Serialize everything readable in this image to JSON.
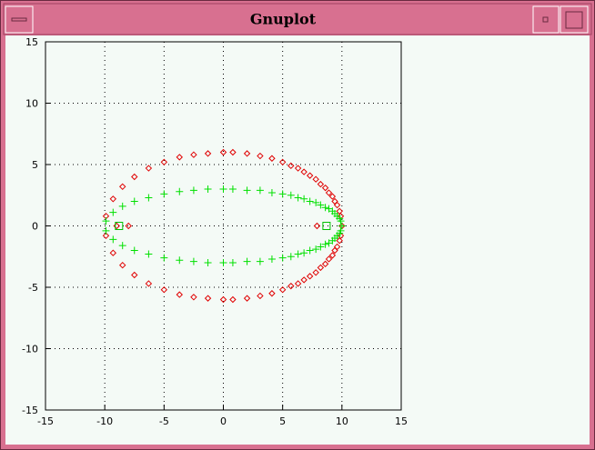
{
  "window": {
    "title": "Gnuplot"
  },
  "chart_data": {
    "type": "scatter",
    "xlim": [
      -15,
      15
    ],
    "ylim": [
      -15,
      15
    ],
    "xticks": [
      -15,
      -10,
      -5,
      0,
      5,
      10,
      15
    ],
    "yticks": [
      -15,
      -10,
      -5,
      0,
      5,
      10,
      15
    ],
    "grid": true,
    "series": [
      {
        "color": "#e00000",
        "marker": "diamond",
        "x": [
          -9.9,
          -9.3,
          -8.5,
          -7.5,
          -6.3,
          -5.0,
          -3.7,
          -2.5,
          -1.3,
          0,
          0.8,
          2.0,
          3.1,
          4.1,
          5.0,
          5.7,
          6.3,
          6.8,
          7.3,
          7.8,
          8.2,
          8.6,
          8.9,
          9.2,
          9.4,
          9.6,
          9.8,
          9.9,
          10.0,
          -9.9,
          -9.3,
          -8.5,
          -7.5,
          -6.3,
          -5.0,
          -3.7,
          -2.5,
          -1.3,
          0,
          0.8,
          2.0,
          3.1,
          4.1,
          5.0,
          5.7,
          6.3,
          6.8,
          7.3,
          7.8,
          8.2,
          8.6,
          8.9,
          9.2,
          9.4,
          9.6,
          9.8,
          9.9,
          -9,
          -8,
          7.9
        ],
        "y": [
          0.8,
          2.2,
          3.2,
          4.0,
          4.7,
          5.2,
          5.6,
          5.8,
          5.9,
          6.0,
          6.0,
          5.9,
          5.7,
          5.5,
          5.2,
          4.9,
          4.7,
          4.4,
          4.1,
          3.8,
          3.4,
          3.1,
          2.7,
          2.4,
          2.0,
          1.7,
          1.2,
          0.8,
          0,
          -0.8,
          -2.2,
          -3.2,
          -4.0,
          -4.7,
          -5.2,
          -5.6,
          -5.8,
          -5.9,
          -6.0,
          -6.0,
          -5.9,
          -5.7,
          -5.5,
          -5.2,
          -4.9,
          -4.7,
          -4.4,
          -4.1,
          -3.8,
          -3.4,
          -3.1,
          -2.7,
          -2.4,
          -2.0,
          -1.7,
          -1.2,
          -0.8,
          0,
          0,
          0
        ]
      },
      {
        "color": "#00e000",
        "marker": "plus",
        "x": [
          -9.9,
          -9.3,
          -8.5,
          -7.5,
          -6.3,
          -5.0,
          -3.7,
          -2.5,
          -1.3,
          0,
          0.8,
          2.0,
          3.1,
          4.1,
          5.0,
          5.7,
          6.3,
          6.8,
          7.3,
          7.8,
          8.2,
          8.6,
          8.9,
          9.2,
          9.4,
          9.6,
          9.8,
          9.9,
          10.0,
          -9.9,
          -9.3,
          -8.5,
          -7.5,
          -6.3,
          -5.0,
          -3.7,
          -2.5,
          -1.3,
          0,
          0.8,
          2.0,
          3.1,
          4.1,
          5.0,
          5.7,
          6.3,
          6.8,
          7.3,
          7.8,
          8.2,
          8.6,
          8.9,
          9.2,
          9.4,
          9.6,
          9.8,
          9.9
        ],
        "y": [
          0.4,
          1.1,
          1.6,
          2.0,
          2.3,
          2.6,
          2.8,
          2.9,
          3.0,
          3.0,
          3.0,
          2.9,
          2.9,
          2.7,
          2.6,
          2.5,
          2.3,
          2.2,
          2.0,
          1.9,
          1.7,
          1.5,
          1.4,
          1.2,
          1.0,
          0.8,
          0.6,
          0.4,
          0,
          -0.4,
          -1.1,
          -1.6,
          -2.0,
          -2.3,
          -2.6,
          -2.8,
          -2.9,
          -3.0,
          -3.0,
          -3.0,
          -2.9,
          -2.9,
          -2.7,
          -2.6,
          -2.5,
          -2.3,
          -2.2,
          -2.0,
          -1.9,
          -1.7,
          -1.5,
          -1.4,
          -1.2,
          -1.0,
          -0.8,
          -0.6,
          -0.4
        ]
      },
      {
        "color": "#00c000",
        "marker": "square",
        "x": [
          -8.8,
          8.7
        ],
        "y": [
          0,
          0
        ]
      }
    ]
  }
}
